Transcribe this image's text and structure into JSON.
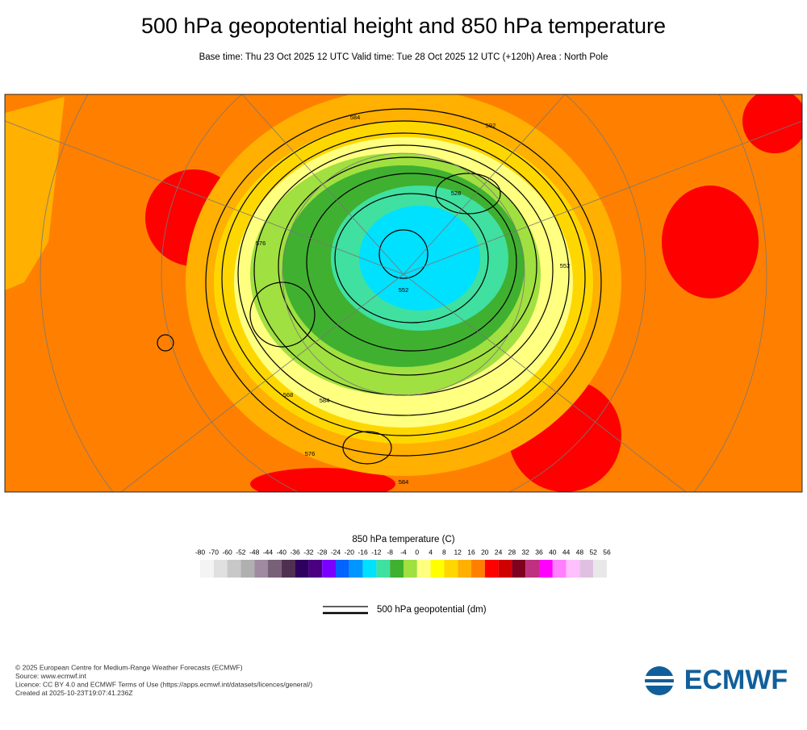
{
  "header": {
    "title": "500 hPa geopotential height and 850 hPa temperature",
    "subtitle": "Base time: Thu 23 Oct 2025 12 UTC Valid time: Tue 28 Oct 2025 12 UTC (+120h) Area : North Pole"
  },
  "map": {
    "contour_labels": [
      "584",
      "592",
      "576",
      "568",
      "584",
      "552",
      "528",
      "584",
      "576",
      "552"
    ]
  },
  "legend": {
    "title": "850 hPa temperature (C)",
    "levels": [
      -80,
      -70,
      -60,
      -52,
      -48,
      -44,
      -40,
      -36,
      -32,
      -28,
      -24,
      -20,
      -16,
      -12,
      -8,
      -4,
      0,
      4,
      8,
      12,
      16,
      20,
      24,
      28,
      32,
      36,
      40,
      44,
      48,
      52,
      56
    ],
    "colors": [
      "#f4f4f4",
      "#e0e0e0",
      "#c8c8c8",
      "#b0b0b0",
      "#a08aa0",
      "#786078",
      "#503050",
      "#300060",
      "#4b0082",
      "#7b00ff",
      "#0064ff",
      "#0096ff",
      "#00e0ff",
      "#40e0a0",
      "#40b030",
      "#a0e040",
      "#ffff80",
      "#ffff00",
      "#ffd700",
      "#ffb000",
      "#ff8000",
      "#ff0000",
      "#d00000",
      "#800020",
      "#c03080",
      "#ff00ff",
      "#ff80ff",
      "#ffc0ff",
      "#e0c0e0",
      "#e8e8e8"
    ],
    "contour_label": "500 hPa geopotential (dm)"
  },
  "footer": {
    "lines": [
      "© 2025 European Centre for Medium-Range Weather Forecasts (ECMWF)",
      "Source: www.ecmwf.int",
      "Licence: CC BY 4.0 and ECMWF Terms of Use (https://apps.ecmwf.int/datasets/licences/general/)",
      "Created at 2025-10-23T19:07:41.236Z"
    ],
    "logo": "ECMWF"
  }
}
